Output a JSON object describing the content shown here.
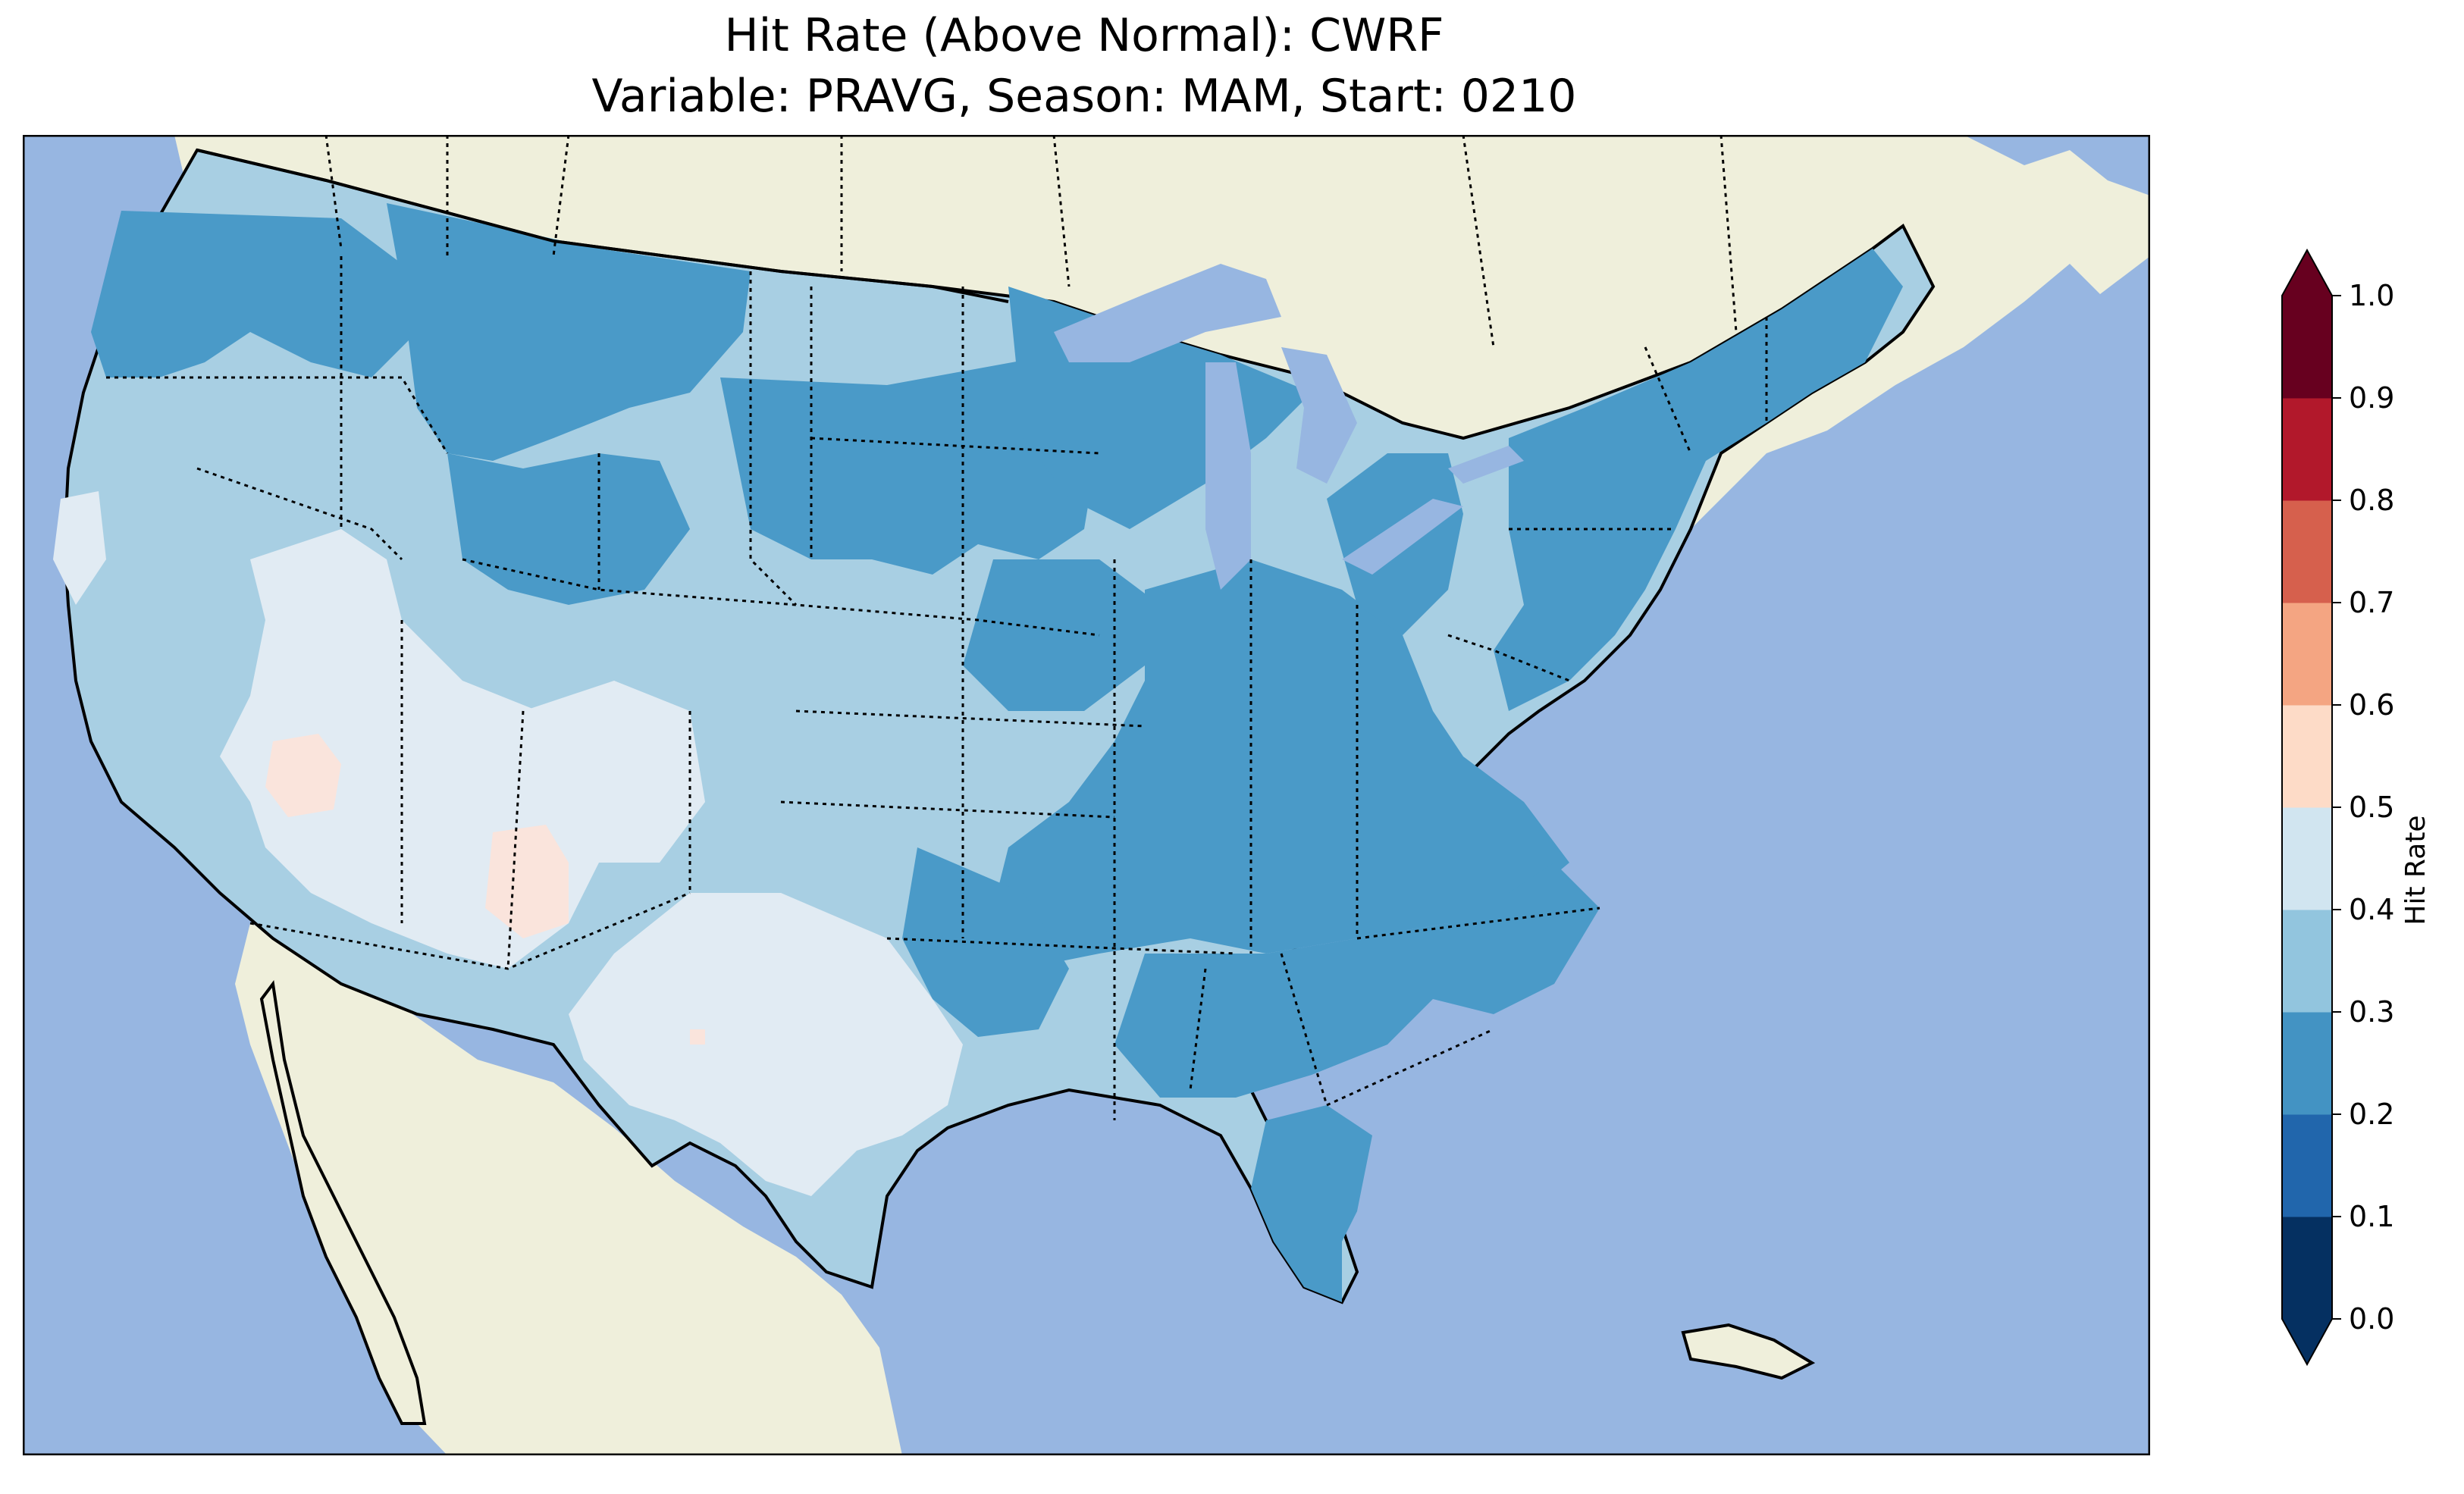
{
  "title": {
    "line1": "Hit Rate (Above Normal): CWRF",
    "line2": "Variable: PRAVG, Season: MAM, Start: 0210"
  },
  "colorbar": {
    "label": "Hit Rate",
    "ticks": [
      "0.0",
      "0.1",
      "0.2",
      "0.3",
      "0.4",
      "0.5",
      "0.6",
      "0.7",
      "0.8",
      "0.9",
      "1.0"
    ],
    "levels": [
      0.0,
      0.1,
      0.2,
      0.3,
      0.4,
      0.5,
      0.6,
      0.7,
      0.8,
      0.9,
      1.0
    ],
    "colors": [
      "#053061",
      "#2166ac",
      "#4393c3",
      "#92c5de",
      "#d1e5f0",
      "#fddbc7",
      "#f4a582",
      "#d6604d",
      "#b2182b",
      "#67001f"
    ],
    "extend": "both",
    "under_color": "#053061",
    "over_color": "#67001f"
  },
  "map": {
    "projection": "Lambert conformal",
    "region": "Contiguous United States",
    "ocean_color": "#97b6e1",
    "land_color": "#efefdb",
    "lake_color": "#97b6e1",
    "state_borders": "dotted",
    "coastline": "solid",
    "field_colors": {
      "0.2-0.3": "#4a9ac8",
      "0.3-0.4": "#a8cfe3",
      "0.4-0.5": "#e1ebf3",
      "0.5-0.6": "#fae4dc"
    },
    "regions": [
      {
        "name": "Pacific Northwest",
        "level": "0.2-0.3"
      },
      {
        "name": "Northern Rockies",
        "level": "0.2-0.3"
      },
      {
        "name": "Northern Plains",
        "level": "0.2-0.3"
      },
      {
        "name": "Upper Midwest",
        "level": "0.2-0.3"
      },
      {
        "name": "Ohio Valley",
        "level": "0.2-0.3"
      },
      {
        "name": "Northeast",
        "level": "0.2-0.3"
      },
      {
        "name": "Southeast",
        "level": "0.2-0.3"
      },
      {
        "name": "Florida",
        "level": "0.2-0.3"
      },
      {
        "name": "California",
        "level": "0.3-0.4"
      },
      {
        "name": "Central Plains",
        "level": "0.3-0.4"
      },
      {
        "name": "Great Basin",
        "level": "0.4-0.5"
      },
      {
        "name": "Texas",
        "level": "0.4-0.5"
      },
      {
        "name": "Southern Nevada",
        "level": "0.5-0.6"
      },
      {
        "name": "Northwest New Mexico",
        "level": "0.5-0.6"
      }
    ]
  }
}
